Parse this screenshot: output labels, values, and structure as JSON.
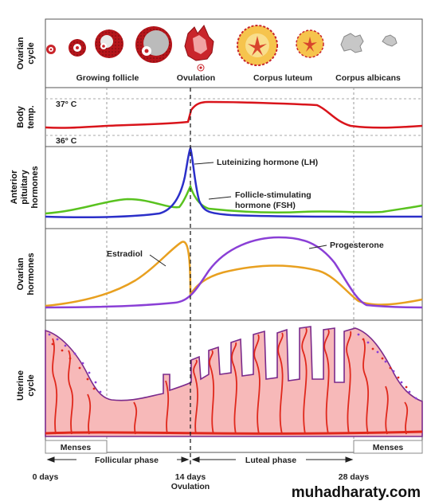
{
  "rows": {
    "ovarian_cycle": [
      "Ovarian",
      "cycle"
    ],
    "body_temp": [
      "Body",
      "temp."
    ],
    "pituitary": [
      "Anterior",
      "pituitary",
      "hormones"
    ],
    "ovarian_hormones": [
      "Ovarian",
      "hormones"
    ],
    "uterine": [
      "Uterine",
      "cycle"
    ]
  },
  "ovarian_stages": {
    "growing": "Growing follicle",
    "ovulation": "Ovulation",
    "luteum": "Corpus luteum",
    "albicans": "Corpus albicans"
  },
  "temperature": {
    "high": "37° C",
    "low": "36° C"
  },
  "hormones": {
    "lh": "Luteinizing hormone (LH)",
    "fsh_line1": "Follicle-stimulating",
    "fsh_line2": "hormone (FSH)",
    "estradiol": "Estradiol",
    "progesterone": "Progesterone"
  },
  "phases": {
    "menses": "Menses",
    "follicular": "Follicular phase",
    "luteal": "Luteal phase"
  },
  "days": {
    "start": "0 days",
    "mid": "14 days",
    "mid_sub": "Ovulation",
    "end": "28 days"
  },
  "watermark": "muhadharaty.com",
  "colors": {
    "temp": "#d9141b",
    "lh": "#2b2fc9",
    "fsh": "#59c21f",
    "estradiol": "#e8a020",
    "progesterone": "#8a3fd6",
    "uterine_fill": "#f7b9b9",
    "uterine_outline": "#7a2a8c",
    "vessel": "#e0281c"
  }
}
